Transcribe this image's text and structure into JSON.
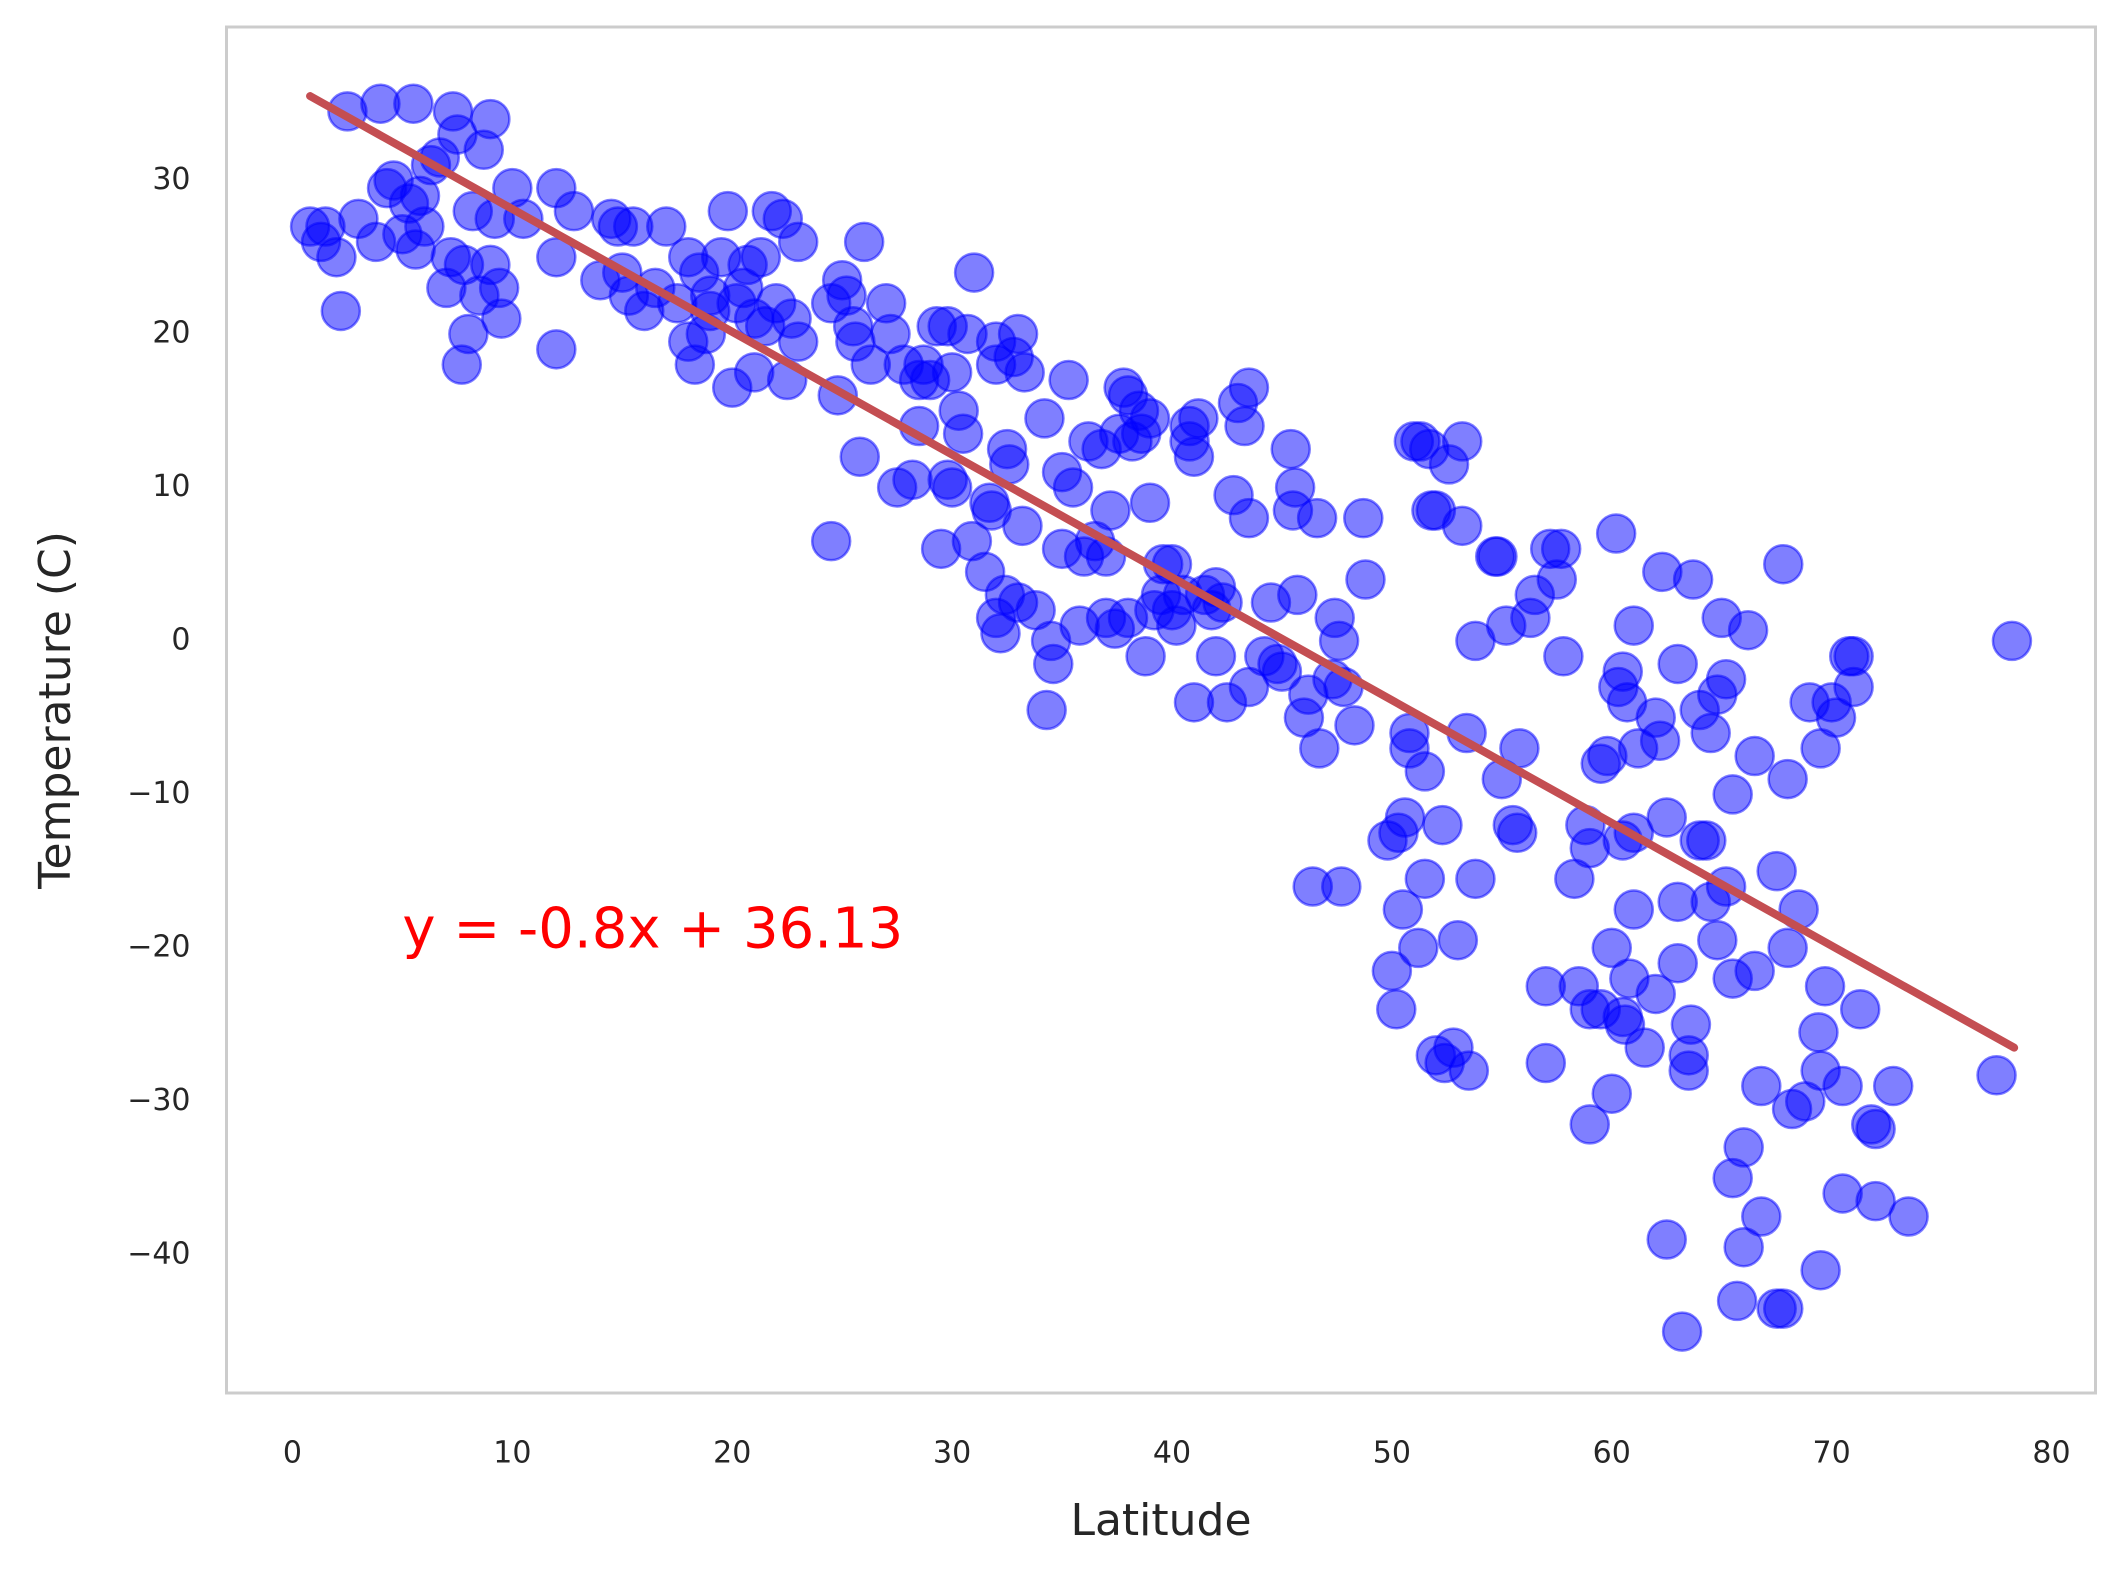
{
  "chart_data": {
    "type": "scatter",
    "xlabel": "Latitude",
    "ylabel": "Temperature (C)",
    "color": "#0000ff",
    "x": [
      0.8,
      1.5,
      1.3,
      2,
      2.2,
      2.5,
      3,
      3.8,
      4,
      4.3,
      4.6,
      5,
      5.3,
      5.5,
      5.6,
      5.8,
      6,
      6.3,
      6.7,
      7,
      7.2,
      7.3,
      7.5,
      7.7,
      7.8,
      8,
      8.2,
      8.5,
      8.7,
      9,
      9,
      9.2,
      9.4,
      9.5,
      10,
      10.5,
      12,
      12,
      12,
      12.8,
      14,
      14.5,
      14.8,
      15,
      15.3,
      15.5,
      16,
      16.5,
      17,
      17.5,
      18,
      18,
      18.3,
      18.5,
      18.8,
      19,
      19,
      19.5,
      19.8,
      20,
      20.2,
      20.5,
      20.7,
      21,
      21,
      21.3,
      21.5,
      21.8,
      22,
      22.3,
      22.5,
      22.7,
      23,
      23,
      24.5,
      24.5,
      24.8,
      25,
      25.2,
      25.5,
      25.6,
      25.8,
      26,
      26.3,
      27,
      27.2,
      27.5,
      27.8,
      28.2,
      28.5,
      28.5,
      28.7,
      29,
      29.3,
      29.8,
      30,
      29.5,
      29.8,
      30,
      30.3,
      30.5,
      30.7,
      30.9,
      31,
      31.5,
      31.7,
      31.8,
      32,
      32,
      32,
      32.2,
      32.4,
      32.5,
      32.6,
      32.8,
      33,
      33,
      33.2,
      33.3,
      33.8,
      34.2,
      34.3,
      34.5,
      34.6,
      35,
      35,
      35.3,
      35.5,
      35.8,
      36,
      36.2,
      36.5,
      36.8,
      37,
      37,
      37.2,
      37.4,
      37.6,
      37.8,
      38,
      38,
      38.2,
      38.5,
      38.6,
      38.8,
      39,
      39,
      39.2,
      39.5,
      39.6,
      40,
      40,
      40.2,
      40.5,
      40.8,
      40.8,
      41,
      41,
      41.2,
      41.5,
      41.8,
      42,
      42,
      42.3,
      42.5,
      42.8,
      43,
      43.3,
      43.5,
      43.5,
      43.5,
      44.2,
      44.5,
      44.8,
      45,
      45.4,
      45.6,
      45.5,
      45.7,
      46,
      46.2,
      46.4,
      46.6,
      46.7,
      47.3,
      47.4,
      47.6,
      47.7,
      47.8,
      48.3,
      48.7,
      48.8,
      49.8,
      50,
      50.2,
      50.3,
      50.5,
      50.6,
      50.8,
      50.8,
      51,
      51.2,
      51.3,
      51.5,
      51.5,
      51.7,
      51.8,
      52,
      52,
      52.3,
      52.4,
      52.6,
      52.8,
      53,
      53.2,
      53.2,
      53.4,
      53.5,
      53.8,
      53.8,
      54.7,
      54.8,
      55,
      55.2,
      55.5,
      55.7,
      55.8,
      56.3,
      56.5,
      57,
      57,
      57.2,
      57.5,
      57.7,
      57.8,
      58.3,
      58.5,
      58.8,
      59,
      59,
      59.5,
      59.8,
      60.2,
      60.3,
      60.5,
      60.7,
      60,
      59.5,
      60,
      59,
      60.5,
      60.6,
      60.8,
      61,
      61,
      60.5,
      61,
      61.2,
      61.5,
      62,
      62,
      62.2,
      62.3,
      62.5,
      62.5,
      63,
      63,
      63,
      63.2,
      63.5,
      63.5,
      63.6,
      63.7,
      64,
      64,
      64.3,
      64.5,
      64.5,
      64.8,
      64.8,
      65,
      65.2,
      65.2,
      65.5,
      65.5,
      65.5,
      65.7,
      66,
      66,
      66.2,
      66.5,
      66.5,
      66.8,
      66.8,
      67.5,
      67.5,
      67.8,
      67.8,
      68,
      68,
      68.2,
      68.5,
      68.8,
      69,
      69.4,
      69.5,
      69.5,
      69.5,
      69.7,
      70,
      70.2,
      70.5,
      70.5,
      70.8,
      71,
      71,
      71.3,
      71.8,
      72,
      72,
      72.8,
      73.5,
      77.5,
      78.2
    ],
    "values": [
      27,
      27,
      26,
      25,
      21.5,
      34.5,
      27.5,
      26,
      35,
      29.5,
      30,
      26.5,
      28.5,
      35,
      25.5,
      29,
      27,
      31,
      31.5,
      23,
      25,
      34.5,
      33,
      18,
      24.5,
      20,
      28,
      22.5,
      32,
      24.5,
      34,
      27.5,
      23,
      21,
      29.5,
      27.5,
      29.5,
      25,
      19,
      28,
      23.5,
      27.5,
      27,
      24,
      22.5,
      27,
      21.5,
      23,
      27,
      22,
      25,
      19.5,
      18,
      24,
      20,
      21.5,
      22.5,
      25,
      28,
      16.5,
      22,
      23,
      24.5,
      17.5,
      21,
      25,
      20.5,
      28,
      22,
      27.5,
      17,
      21,
      26,
      19.5,
      22,
      6.5,
      16,
      23.5,
      22.5,
      20.5,
      19.5,
      12,
      26,
      18,
      22,
      20,
      10,
      18,
      10.5,
      14,
      17,
      18,
      17,
      20.5,
      20.5,
      17.5,
      6,
      10.5,
      10,
      15,
      13.5,
      20,
      6.5,
      24,
      4.5,
      9,
      8.5,
      1.5,
      18,
      19.5,
      0.5,
      3,
      12.5,
      11.5,
      18.5,
      20,
      2.5,
      7.5,
      17.5,
      2,
      14.5,
      -4.5,
      0,
      -1.5,
      11,
      6,
      17,
      10,
      1,
      5.5,
      13,
      6.5,
      12.5,
      1.5,
      5.5,
      8.5,
      0.8,
      13.5,
      16.5,
      16,
      1.5,
      13,
      15,
      13.5,
      -1,
      14.5,
      9,
      2,
      3,
      5,
      5,
      2,
      1,
      3,
      13,
      14,
      12,
      -4,
      14.5,
      3,
      2,
      -1,
      3.5,
      2.5,
      -4,
      9.5,
      15.5,
      14,
      16.5,
      -3,
      8,
      -1,
      2.5,
      -1.5,
      -2,
      12.5,
      10,
      8.5,
      3,
      -5,
      -3.5,
      -16,
      8,
      -7,
      -2.5,
      1.5,
      0,
      -16,
      -3,
      -5.5,
      8,
      4,
      -13,
      -21.5,
      -24,
      -12.5,
      -17.5,
      -11.5,
      -6,
      -7,
      13,
      -20,
      13,
      -15.5,
      -8.5,
      12.5,
      8.5,
      -27,
      8.5,
      -12,
      -27.5,
      11.5,
      -26.5,
      -19.5,
      7.5,
      13,
      -6,
      -28,
      -15.5,
      0,
      5.5,
      5.5,
      -9,
      1,
      -12,
      -12.5,
      -7,
      1.5,
      3,
      -27.5,
      -22.5,
      6,
      4,
      6,
      -1,
      -15.5,
      -22.5,
      -12,
      -24,
      -13.5,
      -8,
      -7.5,
      7,
      -3,
      -2,
      -4,
      -20,
      -24,
      -29.5,
      -31.5,
      -24.5,
      -25,
      -22,
      -17.5,
      -12.5,
      -13,
      1,
      -7,
      -26.5,
      -5,
      -23,
      -6.5,
      4.5,
      -11.5,
      -39,
      -1.5,
      -17,
      -21,
      -45,
      -28,
      -27,
      -25,
      4,
      -4.5,
      -13,
      -13,
      -17,
      -6,
      -19.5,
      -3.5,
      1.5,
      -2.5,
      -16,
      -22,
      -35,
      -10,
      -43,
      -39.5,
      -33,
      0.7,
      -7.5,
      -21.5,
      -37.5,
      -29,
      -15,
      -43.5,
      -43.5,
      5,
      -9,
      -20,
      -30.5,
      -17.5,
      -30,
      -4,
      -25.5,
      -28,
      -7,
      -41,
      -22.5,
      -4,
      -5,
      -29,
      -36,
      -1,
      -3,
      -1,
      -24,
      -31.5,
      -31.8,
      -36.5,
      -29,
      -37.5,
      -28.3,
      0
    ],
    "regression": {
      "x": [
        0.8,
        78.3
      ],
      "y": [
        35.5,
        -26.5
      ],
      "color": "#c44e52"
    },
    "annotation": {
      "text": "y = -0.8x + 36.13",
      "x": 5,
      "y": -19,
      "color": "#ff0000"
    },
    "xlim": [
      -3,
      82
    ],
    "ylim": [
      -49,
      40
    ],
    "xticks": [
      0,
      10,
      20,
      30,
      40,
      50,
      60,
      70,
      80
    ],
    "yticks": [
      {
        "value": -40,
        "label": "−40"
      },
      {
        "value": -30,
        "label": "−30"
      },
      {
        "value": -20,
        "label": "−20"
      },
      {
        "value": -10,
        "label": "−10"
      },
      0,
      10,
      20,
      30
    ],
    "grid": false
  }
}
